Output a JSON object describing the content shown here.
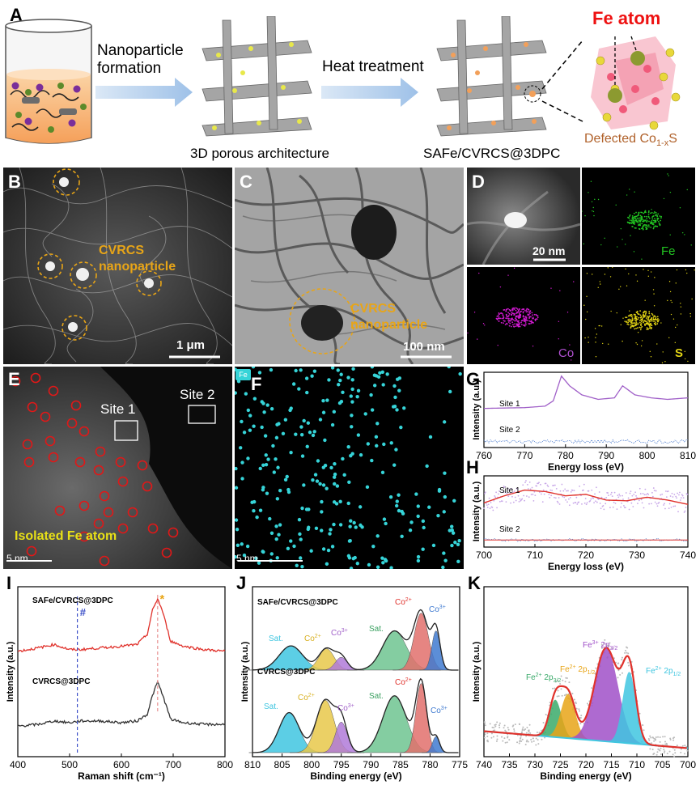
{
  "panelA": {
    "letter": "A",
    "step1": "Nanoparticle\nformation",
    "step2": "Heat treatment",
    "label1": "3D porous architecture",
    "label2": "SAFe/CVRCS@3DPC",
    "fe_atom": "Fe atom",
    "defected": "Defected Co",
    "defected_sub": "1-x",
    "defected_end": "S"
  },
  "panelB": {
    "letter": "B",
    "annotation": "CVRCS\nnanoparticle",
    "scale": "1 μm"
  },
  "panelC": {
    "letter": "C",
    "annotation": "CVRCS\nnanoparticle",
    "scale": "100 nm"
  },
  "panelD": {
    "letter": "D",
    "scale": "20 nm",
    "maps": [
      "Fe",
      "Co",
      "S"
    ]
  },
  "panelE": {
    "letter": "E",
    "site1": "Site 1",
    "site2": "Site 2",
    "annotation": "Isolated Fe atom",
    "scale": "5 nm"
  },
  "panelF": {
    "letter": "F",
    "tag": "Fe",
    "scale": "5 nm"
  },
  "colors": {
    "red_curve": "#e0312b",
    "purple": "#a060c8",
    "blue": "#3c70c8",
    "gold": "#e8a517",
    "green": "#5db85b",
    "cyan": "#3fc6e0",
    "dot": "#36d4d8",
    "circle_red": "#e01818"
  },
  "chart_data": [
    {
      "panel": "G",
      "type": "line",
      "xlabel": "Energy loss (eV)",
      "ylabel": "Intensity (a.u.)",
      "xlim": [
        760,
        810
      ],
      "xticks": [
        760,
        770,
        780,
        790,
        800,
        810
      ],
      "series": [
        {
          "name": "Site 1",
          "x": [
            760,
            770,
            775,
            777,
            779,
            781,
            784,
            788,
            792,
            794,
            797,
            801,
            805,
            810
          ],
          "y": [
            0.52,
            0.53,
            0.55,
            0.62,
            0.95,
            0.82,
            0.7,
            0.64,
            0.66,
            0.82,
            0.7,
            0.66,
            0.64,
            0.66
          ]
        },
        {
          "name": "Site 2",
          "x": [
            760,
            810
          ],
          "y": [
            0.08,
            0.08
          ]
        }
      ]
    },
    {
      "panel": "H",
      "type": "line",
      "xlabel": "Energy loss (eV)",
      "ylabel": "Intensity (a.u.)",
      "xlim": [
        700,
        740
      ],
      "xticks": [
        700,
        710,
        720,
        730,
        740
      ],
      "series": [
        {
          "name": "Site 1",
          "x": [
            700,
            704,
            708,
            712,
            716,
            720,
            724,
            728,
            732,
            736,
            740
          ],
          "y": [
            0.62,
            0.72,
            0.8,
            0.78,
            0.72,
            0.74,
            0.66,
            0.65,
            0.7,
            0.66,
            0.6
          ]
        },
        {
          "name": "Site 2",
          "x": [
            700,
            740
          ],
          "y": [
            0.1,
            0.1
          ]
        }
      ]
    },
    {
      "panel": "I",
      "type": "line",
      "xlabel": "Raman shift (cm⁻¹)",
      "ylabel": "Intensity (a.u.)",
      "xlim": [
        400,
        800
      ],
      "xticks": [
        400,
        500,
        600,
        700,
        800
      ],
      "annotations": [
        "#",
        "*"
      ],
      "series": [
        {
          "name": "SAFe/CVRCS@3DPC",
          "x": [
            400,
            440,
            470,
            500,
            520,
            560,
            600,
            630,
            650,
            660,
            670,
            680,
            695,
            720,
            760,
            800
          ],
          "y": [
            0.62,
            0.64,
            0.66,
            0.63,
            0.63,
            0.64,
            0.65,
            0.66,
            0.72,
            0.86,
            0.93,
            0.85,
            0.68,
            0.65,
            0.63,
            0.62
          ]
        },
        {
          "name": "CVRCS@3DPC",
          "x": [
            400,
            440,
            470,
            500,
            520,
            560,
            600,
            630,
            650,
            660,
            670,
            680,
            695,
            720,
            760,
            800
          ],
          "y": [
            0.18,
            0.19,
            0.21,
            0.2,
            0.21,
            0.21,
            0.2,
            0.21,
            0.25,
            0.36,
            0.44,
            0.36,
            0.22,
            0.2,
            0.19,
            0.19
          ]
        }
      ]
    },
    {
      "panel": "J",
      "type": "area",
      "xlabel": "Binding energy (eV)",
      "ylabel": "Intensity (a.u.)",
      "xlim": [
        810,
        775
      ],
      "xticks": [
        810,
        805,
        800,
        795,
        790,
        785,
        780,
        775
      ],
      "spectra": [
        {
          "name": "SAFe/CVRCS@3DPC",
          "peaks": [
            {
              "label": "Sat.",
              "center": 803.5,
              "height": 0.34,
              "width": 2.0,
              "color": "#3fc6e0"
            },
            {
              "label": "Co2+",
              "center": 797.5,
              "height": 0.3,
              "width": 1.3,
              "color": "#e8c84a"
            },
            {
              "label": "Co3+",
              "center": 795.0,
              "height": 0.18,
              "width": 1.0,
              "color": "#b07ad8"
            },
            {
              "label": "Sat.",
              "center": 786.0,
              "height": 0.55,
              "width": 2.0,
              "color": "#6fc490"
            },
            {
              "label": "Co2+",
              "center": 781.5,
              "height": 0.8,
              "width": 1.2,
              "color": "#e2706c"
            },
            {
              "label": "Co3+",
              "center": 779.0,
              "height": 0.55,
              "width": 0.7,
              "color": "#3f7ad0"
            }
          ]
        },
        {
          "name": "CVRCS@3DPC",
          "peaks": [
            {
              "label": "Sat.",
              "center": 803.8,
              "height": 0.55,
              "width": 1.7,
              "color": "#3fc6e0"
            },
            {
              "label": "Co2+",
              "center": 797.7,
              "height": 0.72,
              "width": 1.5,
              "color": "#e8c84a"
            },
            {
              "label": "Co3+",
              "center": 795.0,
              "height": 0.42,
              "width": 1.0,
              "color": "#b07ad8"
            },
            {
              "label": "Sat.",
              "center": 786.0,
              "height": 0.78,
              "width": 2.0,
              "color": "#6fc490"
            },
            {
              "label": "Co2+",
              "center": 781.5,
              "height": 0.95,
              "width": 0.9,
              "color": "#e2706c"
            },
            {
              "label": "Co3+",
              "center": 779.0,
              "height": 0.22,
              "width": 0.6,
              "color": "#3f7ad0"
            }
          ]
        }
      ]
    },
    {
      "panel": "K",
      "type": "area",
      "xlabel": "Binding energy (eV)",
      "ylabel": "Intensity (a.u.)",
      "xlim": [
        740,
        700
      ],
      "xticks": [
        740,
        735,
        730,
        725,
        720,
        715,
        710,
        705,
        700
      ],
      "peaks": [
        {
          "label": "Fe2+ 2p3/2",
          "center": 726.0,
          "height": 0.22,
          "width": 1.2,
          "color": "#3aaa6a"
        },
        {
          "label": "Fe2+ 2p1/2",
          "center": 723.5,
          "height": 0.26,
          "width": 1.4,
          "color": "#e8a517"
        },
        {
          "label": "Fe3+ 2p3/2",
          "center": 716.0,
          "height": 0.55,
          "width": 2.3,
          "color": "#a050c8"
        },
        {
          "label": "Fe2+ 2p1/2",
          "center": 711.5,
          "height": 0.42,
          "width": 1.3,
          "color": "#3fc6e0"
        }
      ]
    }
  ],
  "labels": {
    "G": {
      "letter": "G",
      "site1": "Site 1",
      "site2": "Site 2"
    },
    "H": {
      "letter": "H",
      "site1": "Site 1",
      "site2": "Site 2"
    },
    "I": {
      "letter": "I",
      "s1": "SAFe/CVRCS@3DPC",
      "s2": "CVRCS@3DPC",
      "hash": "#",
      "star": "*"
    },
    "J": {
      "letter": "J",
      "s1": "SAFe/CVRCS@3DPC",
      "s2": "CVRCS@3DPC"
    },
    "K": {
      "letter": "K",
      "fe2a": "Fe",
      "fe2a_sup": "2+",
      "fe2a_rest": "2p",
      "fe2a_sub": "3/2",
      "fe2b": "Fe",
      "fe2b_sup": "2+",
      "fe2b_rest": "2p",
      "fe2b_sub": "1/2",
      "fe3": "Fe",
      "fe3_sup": "3+",
      "fe3_rest": "2p",
      "fe3_sub": "3/2",
      "fe2c": "Fe",
      "fe2c_sup": "2+",
      "fe2c_rest": "2p",
      "fe2c_sub": "1/2"
    },
    "Jpeaks": {
      "sat": "Sat.",
      "co": "Co",
      "co2": "2+",
      "co3": "3+"
    }
  }
}
